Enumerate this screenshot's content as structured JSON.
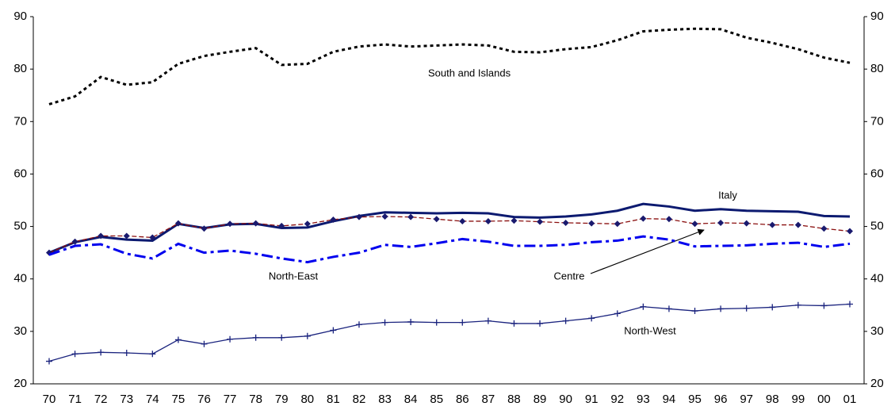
{
  "chart_data": {
    "type": "line",
    "categories": [
      "70",
      "71",
      "72",
      "73",
      "74",
      "75",
      "76",
      "77",
      "78",
      "79",
      "80",
      "81",
      "82",
      "83",
      "84",
      "85",
      "86",
      "87",
      "88",
      "89",
      "90",
      "91",
      "92",
      "93",
      "94",
      "95",
      "96",
      "97",
      "98",
      "99",
      "00",
      "01"
    ],
    "ylim": [
      20,
      90
    ],
    "yticks": [
      20,
      30,
      40,
      50,
      60,
      70,
      80,
      90
    ],
    "series": [
      {
        "name": "South and Islands",
        "color": "#000000",
        "style": "dotted",
        "marker": "none",
        "values": [
          73.3,
          74.8,
          78.5,
          77,
          77.5,
          81,
          82.5,
          83.3,
          84,
          80.8,
          81,
          83.3,
          84.3,
          84.7,
          84.3,
          84.5,
          84.7,
          84.5,
          83.3,
          83.2,
          83.8,
          84.2,
          85.5,
          87.2,
          87.5,
          87.7,
          87.6,
          86,
          85,
          83.8,
          82.2,
          81.2
        ]
      },
      {
        "name": "Italy",
        "color": "#0c1a70",
        "style": "solid",
        "marker": "none",
        "values": [
          45,
          47,
          48,
          47.5,
          47.3,
          50.5,
          49.7,
          50.4,
          50.5,
          49.7,
          49.8,
          51,
          52,
          52.7,
          52.6,
          52.5,
          52.6,
          52.5,
          51.8,
          51.7,
          51.9,
          52.3,
          53,
          54.3,
          53.8,
          53,
          53.3,
          53,
          52.9,
          52.8,
          52,
          51.9
        ]
      },
      {
        "name": "Centre",
        "color": "#8b1010",
        "style": "dashed",
        "marker": "diamond",
        "marker_color": "#1a1a6e",
        "values": [
          45,
          47.1,
          48.2,
          48.2,
          47.9,
          50.6,
          49.6,
          50.5,
          50.6,
          50.1,
          50.5,
          51.3,
          51.8,
          51.9,
          51.8,
          51.4,
          51,
          51,
          51.1,
          50.9,
          50.7,
          50.6,
          50.5,
          51.5,
          51.4,
          50.5,
          50.7,
          50.6,
          50.3,
          50.3,
          49.6,
          49.1
        ]
      },
      {
        "name": "North-East",
        "color": "#0000ee",
        "style": "dashdot",
        "marker": "none",
        "values": [
          44.6,
          46.3,
          46.6,
          44.8,
          43.9,
          46.7,
          45,
          45.4,
          44.8,
          43.9,
          43.2,
          44.2,
          45,
          46.5,
          46.1,
          46.8,
          47.6,
          47.1,
          46.3,
          46.3,
          46.5,
          47,
          47.3,
          48.1,
          47.5,
          46.2,
          46.3,
          46.4,
          46.7,
          46.9,
          46.1,
          46.7
        ]
      },
      {
        "name": "North-West",
        "color": "#1a237e",
        "style": "solid-thin",
        "marker": "plus",
        "values": [
          24.3,
          25.7,
          26,
          25.9,
          25.7,
          28.4,
          27.6,
          28.5,
          28.8,
          28.8,
          29.1,
          30.2,
          31.3,
          31.7,
          31.8,
          31.7,
          31.7,
          32,
          31.5,
          31.5,
          32,
          32.5,
          33.4,
          34.7,
          34.3,
          33.9,
          34.3,
          34.4,
          34.6,
          35,
          34.9,
          35.2
        ]
      }
    ]
  }
}
